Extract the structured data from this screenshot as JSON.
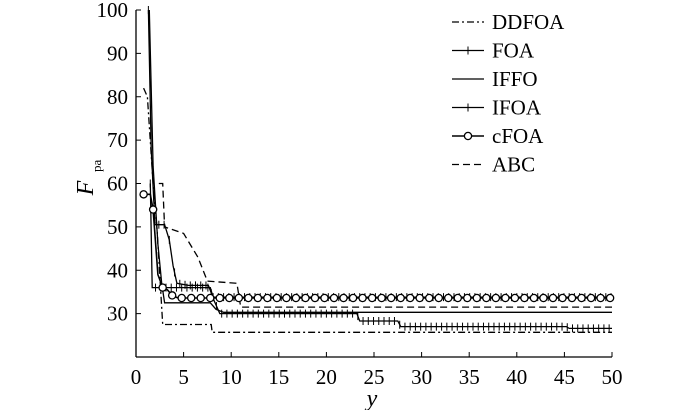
{
  "chart_data": {
    "type": "line",
    "xlabel": "y",
    "ylabel": "F",
    "ylabel_subscript": "pa",
    "xlim": [
      0,
      50
    ],
    "ylim": [
      20,
      100
    ],
    "x_ticks": [
      "0",
      "5",
      "10",
      "15",
      "20",
      "25",
      "30",
      "35",
      "40",
      "45",
      "50"
    ],
    "y_ticks": [
      "30",
      "40",
      "50",
      "60",
      "70",
      "80",
      "90",
      "100"
    ],
    "grid": false,
    "legend_position": "top-right",
    "series": [
      {
        "name": "DDFOA",
        "style": "dashdot",
        "marker": "none",
        "points": [
          [
            0.8,
            82
          ],
          [
            1.2,
            80
          ],
          [
            1.8,
            60
          ],
          [
            2.2,
            50
          ],
          [
            2.8,
            27.5
          ],
          [
            7.9,
            27.5
          ],
          [
            8,
            25.7
          ],
          [
            50,
            25.7
          ]
        ]
      },
      {
        "name": "FOA",
        "style": "solid",
        "marker": "plus",
        "points": [
          [
            1.3,
            100
          ],
          [
            1.6,
            68
          ],
          [
            2,
            50.5
          ],
          [
            3,
            50.5
          ],
          [
            3.5,
            47
          ],
          [
            3.9,
            41
          ],
          [
            4.3,
            37
          ],
          [
            5.5,
            36.5
          ],
          [
            7.6,
            36.5
          ],
          [
            8.2,
            33
          ],
          [
            8.8,
            30
          ],
          [
            23.2,
            30
          ],
          [
            23.5,
            28.3
          ],
          [
            27.5,
            28.3
          ],
          [
            27.8,
            27
          ],
          [
            45.2,
            27
          ],
          [
            45.5,
            26.6
          ],
          [
            50,
            26.6
          ]
        ]
      },
      {
        "name": "IFFO",
        "style": "solid",
        "marker": "none",
        "points": [
          [
            1.4,
            100
          ],
          [
            1.8,
            64
          ],
          [
            2.3,
            46
          ],
          [
            2.7,
            37
          ],
          [
            3,
            32.5
          ],
          [
            7.8,
            32.5
          ],
          [
            8.4,
            31
          ],
          [
            9.2,
            30.3
          ],
          [
            50,
            30.3
          ]
        ]
      },
      {
        "name": "IFOA",
        "style": "solid",
        "marker": "plus",
        "points": [
          [
            1.5,
            60
          ],
          [
            1.7,
            36
          ],
          [
            7.8,
            36
          ],
          [
            8.1,
            33.8
          ],
          [
            50,
            33.8
          ]
        ]
      },
      {
        "name": "cFOA",
        "style": "solid",
        "marker": "circle",
        "points": [
          [
            0.8,
            57.5
          ],
          [
            1.5,
            57.5
          ],
          [
            1.8,
            54
          ],
          [
            2.3,
            39
          ],
          [
            2.8,
            36
          ],
          [
            3.3,
            35.5
          ],
          [
            3.8,
            34.2
          ],
          [
            4.4,
            33.6
          ],
          [
            50,
            33.6
          ]
        ]
      },
      {
        "name": "ABC",
        "style": "dashed",
        "marker": "none",
        "points": [
          [
            2.4,
            60
          ],
          [
            2.8,
            60
          ],
          [
            3,
            50
          ],
          [
            5,
            48.5
          ],
          [
            6.5,
            43
          ],
          [
            7.5,
            37.5
          ],
          [
            10.6,
            37
          ],
          [
            11,
            31.5
          ],
          [
            50,
            31.5
          ]
        ]
      }
    ]
  }
}
